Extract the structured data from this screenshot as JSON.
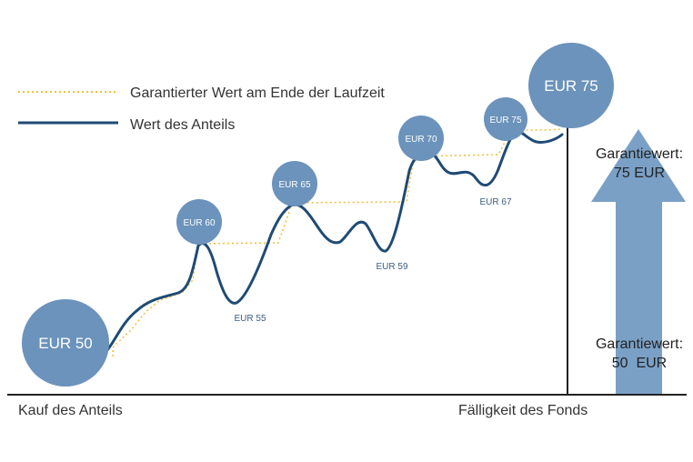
{
  "legend": {
    "guaranteed_label": "Garantierter Wert am Ende der Laufzeit",
    "value_label": "Wert des Anteils"
  },
  "axis": {
    "start_label": "Kauf des Anteils",
    "maturity_label": "Fälligkeit des Fonds"
  },
  "guarantee": {
    "top_label_line1": "Garantiewert:",
    "top_label_line2": "75 EUR",
    "bottom_label_line1": "Garantiewert:",
    "bottom_label_line2": "50  EUR"
  },
  "colors": {
    "circle": "#6b93bb",
    "arrow": "#7aa0c6",
    "line": "#1f4b74",
    "guarantee_line": "#f0c040",
    "axis": "#222222",
    "text": "#333333",
    "trough_text": "#3a5d80"
  },
  "chart_data": {
    "type": "line",
    "series": [
      {
        "name": "Wert des Anteils",
        "style": "solid",
        "points": [
          {
            "label": "EUR 50",
            "value": 50,
            "kind": "peak"
          },
          {
            "label": "EUR 60",
            "value": 60,
            "kind": "peak"
          },
          {
            "label": "EUR 55",
            "value": 55,
            "kind": "trough"
          },
          {
            "label": "EUR 65",
            "value": 65,
            "kind": "peak"
          },
          {
            "label": "EUR 59",
            "value": 59,
            "kind": "trough"
          },
          {
            "label": "EUR 70",
            "value": 70,
            "kind": "peak"
          },
          {
            "label": "EUR 67",
            "value": 67,
            "kind": "trough"
          },
          {
            "label": "EUR 75",
            "value": 75,
            "kind": "peak"
          }
        ]
      },
      {
        "name": "Garantierter Wert am Ende der Laufzeit",
        "style": "dotted-step",
        "values": [
          50,
          60,
          65,
          70,
          75
        ]
      }
    ],
    "guarantee_start": 50,
    "guarantee_end": 75
  }
}
